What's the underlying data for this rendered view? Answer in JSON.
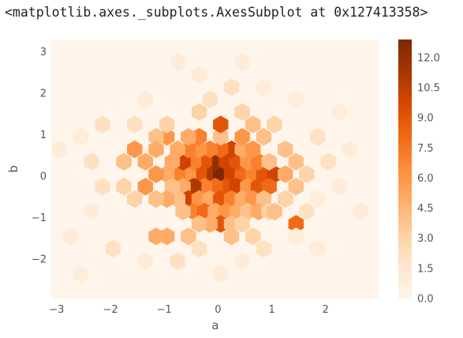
{
  "output_repr": "<matplotlib.axes._subplots.AxesSubplot at 0x127413358>",
  "chart_data": {
    "type": "hexbin",
    "title": "",
    "xlabel": "a",
    "ylabel": "b",
    "xlim": [
      -3.1,
      3.0
    ],
    "ylim": [
      -2.95,
      3.3
    ],
    "xticks": [
      -3,
      -2,
      -1,
      0,
      1,
      2
    ],
    "yticks": [
      -2,
      -1,
      0,
      1,
      2,
      3
    ],
    "xtick_labels": [
      "−3",
      "−2",
      "−1",
      "0",
      "1",
      "2"
    ],
    "ytick_labels": [
      "−2",
      "−1",
      "0",
      "1",
      "2",
      "3"
    ],
    "colormap": "Oranges",
    "colorbar": {
      "min": 0.0,
      "max": 12.9,
      "ticks": [
        0.0,
        1.5,
        3.0,
        4.5,
        6.0,
        7.5,
        9.0,
        10.5,
        12.0
      ],
      "tick_labels": [
        "0.0",
        "1.5",
        "3.0",
        "4.5",
        "6.0",
        "7.5",
        "9.0",
        "10.5",
        "12.0"
      ]
    },
    "grid": false,
    "legend": "none",
    "hexbins": [
      {
        "x": -0.15,
        "y": 0.05,
        "count": 11
      },
      {
        "x": 0.05,
        "y": 0.05,
        "count": 13
      },
      {
        "x": 0.25,
        "y": 0.05,
        "count": 10
      },
      {
        "x": 0.45,
        "y": 0.05,
        "count": 8
      },
      {
        "x": -0.35,
        "y": 0.05,
        "count": 9
      },
      {
        "x": -0.55,
        "y": 0.05,
        "count": 6
      },
      {
        "x": -0.75,
        "y": 0.05,
        "count": 7
      },
      {
        "x": -0.95,
        "y": 0.05,
        "count": 5
      },
      {
        "x": 0.65,
        "y": 0.05,
        "count": 7
      },
      {
        "x": 0.85,
        "y": 0.05,
        "count": 9
      },
      {
        "x": 1.05,
        "y": 0.05,
        "count": 10
      },
      {
        "x": 1.25,
        "y": 0.05,
        "count": 5
      },
      {
        "x": 0.15,
        "y": -0.25,
        "count": 9
      },
      {
        "x": -0.05,
        "y": -0.25,
        "count": 8
      },
      {
        "x": -0.25,
        "y": -0.25,
        "count": 7
      },
      {
        "x": -0.45,
        "y": -0.25,
        "count": 11
      },
      {
        "x": 0.35,
        "y": -0.25,
        "count": 10
      },
      {
        "x": 0.55,
        "y": -0.25,
        "count": 6
      },
      {
        "x": 0.75,
        "y": -0.25,
        "count": 9
      },
      {
        "x": 0.95,
        "y": -0.25,
        "count": 8
      },
      {
        "x": -0.65,
        "y": -0.25,
        "count": 5
      },
      {
        "x": -0.85,
        "y": -0.25,
        "count": 4
      },
      {
        "x": -0.05,
        "y": 0.35,
        "count": 12
      },
      {
        "x": 0.15,
        "y": 0.35,
        "count": 10
      },
      {
        "x": -0.25,
        "y": 0.35,
        "count": 9
      },
      {
        "x": 0.35,
        "y": 0.35,
        "count": 9
      },
      {
        "x": -0.45,
        "y": 0.35,
        "count": 7
      },
      {
        "x": 0.55,
        "y": 0.35,
        "count": 6
      },
      {
        "x": 0.75,
        "y": 0.35,
        "count": 7
      },
      {
        "x": -0.65,
        "y": 0.35,
        "count": 10
      },
      {
        "x": -0.85,
        "y": 0.35,
        "count": 5
      },
      {
        "x": 0.95,
        "y": 0.35,
        "count": 4
      },
      {
        "x": 0.25,
        "y": 0.65,
        "count": 10
      },
      {
        "x": 0.05,
        "y": 0.65,
        "count": 8
      },
      {
        "x": -0.15,
        "y": 0.65,
        "count": 7
      },
      {
        "x": -0.35,
        "y": 0.65,
        "count": 6
      },
      {
        "x": 0.45,
        "y": 0.65,
        "count": 5
      },
      {
        "x": -0.55,
        "y": 0.65,
        "count": 7
      },
      {
        "x": -0.75,
        "y": 0.65,
        "count": 5
      },
      {
        "x": 0.65,
        "y": 0.65,
        "count": 6
      },
      {
        "x": 0.05,
        "y": 0.95,
        "count": 4
      },
      {
        "x": 0.05,
        "y": 1.25,
        "count": 9
      },
      {
        "x": -0.35,
        "y": 0.95,
        "count": 7
      },
      {
        "x": -0.55,
        "y": 0.95,
        "count": 5
      },
      {
        "x": 0.45,
        "y": 0.95,
        "count": 6
      },
      {
        "x": 0.85,
        "y": 0.95,
        "count": 4
      },
      {
        "x": -0.95,
        "y": 0.95,
        "count": 6
      },
      {
        "x": -1.15,
        "y": 0.95,
        "count": 4
      },
      {
        "x": -0.55,
        "y": -0.55,
        "count": 10
      },
      {
        "x": -0.35,
        "y": -0.55,
        "count": 6
      },
      {
        "x": -0.15,
        "y": -0.55,
        "count": 5
      },
      {
        "x": 0.05,
        "y": -0.55,
        "count": 9
      },
      {
        "x": 0.25,
        "y": -0.55,
        "count": 7
      },
      {
        "x": 0.45,
        "y": -0.55,
        "count": 5
      },
      {
        "x": 0.65,
        "y": -0.55,
        "count": 6
      },
      {
        "x": -0.75,
        "y": -0.55,
        "count": 4
      },
      {
        "x": -0.95,
        "y": -0.55,
        "count": 5
      },
      {
        "x": 0.85,
        "y": -0.55,
        "count": 4
      },
      {
        "x": -0.45,
        "y": -0.85,
        "count": 7
      },
      {
        "x": -0.25,
        "y": -0.85,
        "count": 8
      },
      {
        "x": -0.05,
        "y": -0.85,
        "count": 5
      },
      {
        "x": 0.15,
        "y": -0.85,
        "count": 6
      },
      {
        "x": 0.35,
        "y": -0.85,
        "count": 5
      },
      {
        "x": 0.55,
        "y": -0.85,
        "count": 4
      },
      {
        "x": -0.65,
        "y": -0.85,
        "count": 4
      },
      {
        "x": 0.75,
        "y": -0.85,
        "count": 5
      },
      {
        "x": 0.95,
        "y": -0.85,
        "count": 3
      },
      {
        "x": 0.05,
        "y": -1.15,
        "count": 9
      },
      {
        "x": -0.15,
        "y": -1.15,
        "count": 5
      },
      {
        "x": 0.25,
        "y": -1.15,
        "count": 4
      },
      {
        "x": -0.35,
        "y": -1.15,
        "count": 4
      },
      {
        "x": 0.45,
        "y": -1.15,
        "count": 3
      },
      {
        "x": 1.45,
        "y": -1.15,
        "count": 8
      },
      {
        "x": -1.15,
        "y": -1.45,
        "count": 5
      },
      {
        "x": -0.95,
        "y": -1.45,
        "count": 5
      },
      {
        "x": -0.55,
        "y": -1.45,
        "count": 4
      },
      {
        "x": 0.25,
        "y": -1.45,
        "count": 4
      },
      {
        "x": 0.65,
        "y": -1.45,
        "count": 3
      },
      {
        "x": -1.35,
        "y": -0.25,
        "count": 6
      },
      {
        "x": -1.35,
        "y": 0.35,
        "count": 5
      },
      {
        "x": -1.55,
        "y": 0.65,
        "count": 6
      },
      {
        "x": -1.75,
        "y": 0.35,
        "count": 4
      },
      {
        "x": -1.75,
        "y": -0.25,
        "count": 3
      },
      {
        "x": -1.55,
        "y": -0.55,
        "count": 3
      },
      {
        "x": -1.15,
        "y": -0.55,
        "count": 4
      },
      {
        "x": -1.15,
        "y": 0.05,
        "count": 6
      },
      {
        "x": -1.15,
        "y": 0.65,
        "count": 5
      },
      {
        "x": 1.25,
        "y": 0.65,
        "count": 4
      },
      {
        "x": 1.45,
        "y": 0.35,
        "count": 4
      },
      {
        "x": 1.65,
        "y": 0.05,
        "count": 3
      },
      {
        "x": 1.45,
        "y": -0.25,
        "count": 4
      },
      {
        "x": 1.25,
        "y": -0.55,
        "count": 3
      },
      {
        "x": 1.05,
        "y": -0.85,
        "count": 4
      },
      {
        "x": 1.05,
        "y": 1.25,
        "count": 3
      },
      {
        "x": -0.95,
        "y": 1.25,
        "count": 3
      },
      {
        "x": -1.55,
        "y": 1.25,
        "count": 2
      },
      {
        "x": -0.35,
        "y": 1.55,
        "count": 3
      },
      {
        "x": 0.45,
        "y": 1.55,
        "count": 3
      },
      {
        "x": 0.65,
        "y": 1.25,
        "count": 4
      },
      {
        "x": -0.15,
        "y": 1.85,
        "count": 2
      },
      {
        "x": 0.25,
        "y": 2.15,
        "count": 2
      },
      {
        "x": -1.35,
        "y": 1.85,
        "count": 1
      },
      {
        "x": 1.45,
        "y": 1.85,
        "count": 1
      },
      {
        "x": -0.75,
        "y": 2.75,
        "count": 1
      },
      {
        "x": -2.15,
        "y": 1.25,
        "count": 2
      },
      {
        "x": -2.35,
        "y": 0.35,
        "count": 2
      },
      {
        "x": -2.55,
        "y": 0.95,
        "count": 1
      },
      {
        "x": -2.15,
        "y": -0.25,
        "count": 2
      },
      {
        "x": -2.35,
        "y": -0.85,
        "count": 1
      },
      {
        "x": -2.75,
        "y": -1.45,
        "count": 1
      },
      {
        "x": -2.95,
        "y": 0.65,
        "count": 1
      },
      {
        "x": -2.55,
        "y": -2.35,
        "count": 1
      },
      {
        "x": -1.95,
        "y": -1.75,
        "count": 2
      },
      {
        "x": -1.35,
        "y": -2.05,
        "count": 1
      },
      {
        "x": -0.75,
        "y": -2.05,
        "count": 2
      },
      {
        "x": -0.35,
        "y": -1.75,
        "count": 2
      },
      {
        "x": 0.05,
        "y": -2.35,
        "count": 1
      },
      {
        "x": 0.45,
        "y": -2.05,
        "count": 1
      },
      {
        "x": 0.85,
        "y": -1.75,
        "count": 2
      },
      {
        "x": 1.45,
        "y": -1.45,
        "count": 1
      },
      {
        "x": 1.65,
        "y": -0.85,
        "count": 2
      },
      {
        "x": 1.85,
        "y": -0.55,
        "count": 1
      },
      {
        "x": 2.05,
        "y": 0.35,
        "count": 2
      },
      {
        "x": 1.85,
        "y": 0.95,
        "count": 2
      },
      {
        "x": 2.25,
        "y": -0.25,
        "count": 1
      },
      {
        "x": 2.45,
        "y": 0.65,
        "count": 1
      },
      {
        "x": 2.65,
        "y": -0.85,
        "count": 1
      },
      {
        "x": 1.85,
        "y": -1.75,
        "count": 1
      },
      {
        "x": 2.25,
        "y": 1.55,
        "count": 1
      },
      {
        "x": 0.85,
        "y": 2.15,
        "count": 1
      },
      {
        "x": -0.35,
        "y": 2.45,
        "count": 1
      },
      {
        "x": 0.45,
        "y": 2.75,
        "count": 1
      }
    ]
  }
}
